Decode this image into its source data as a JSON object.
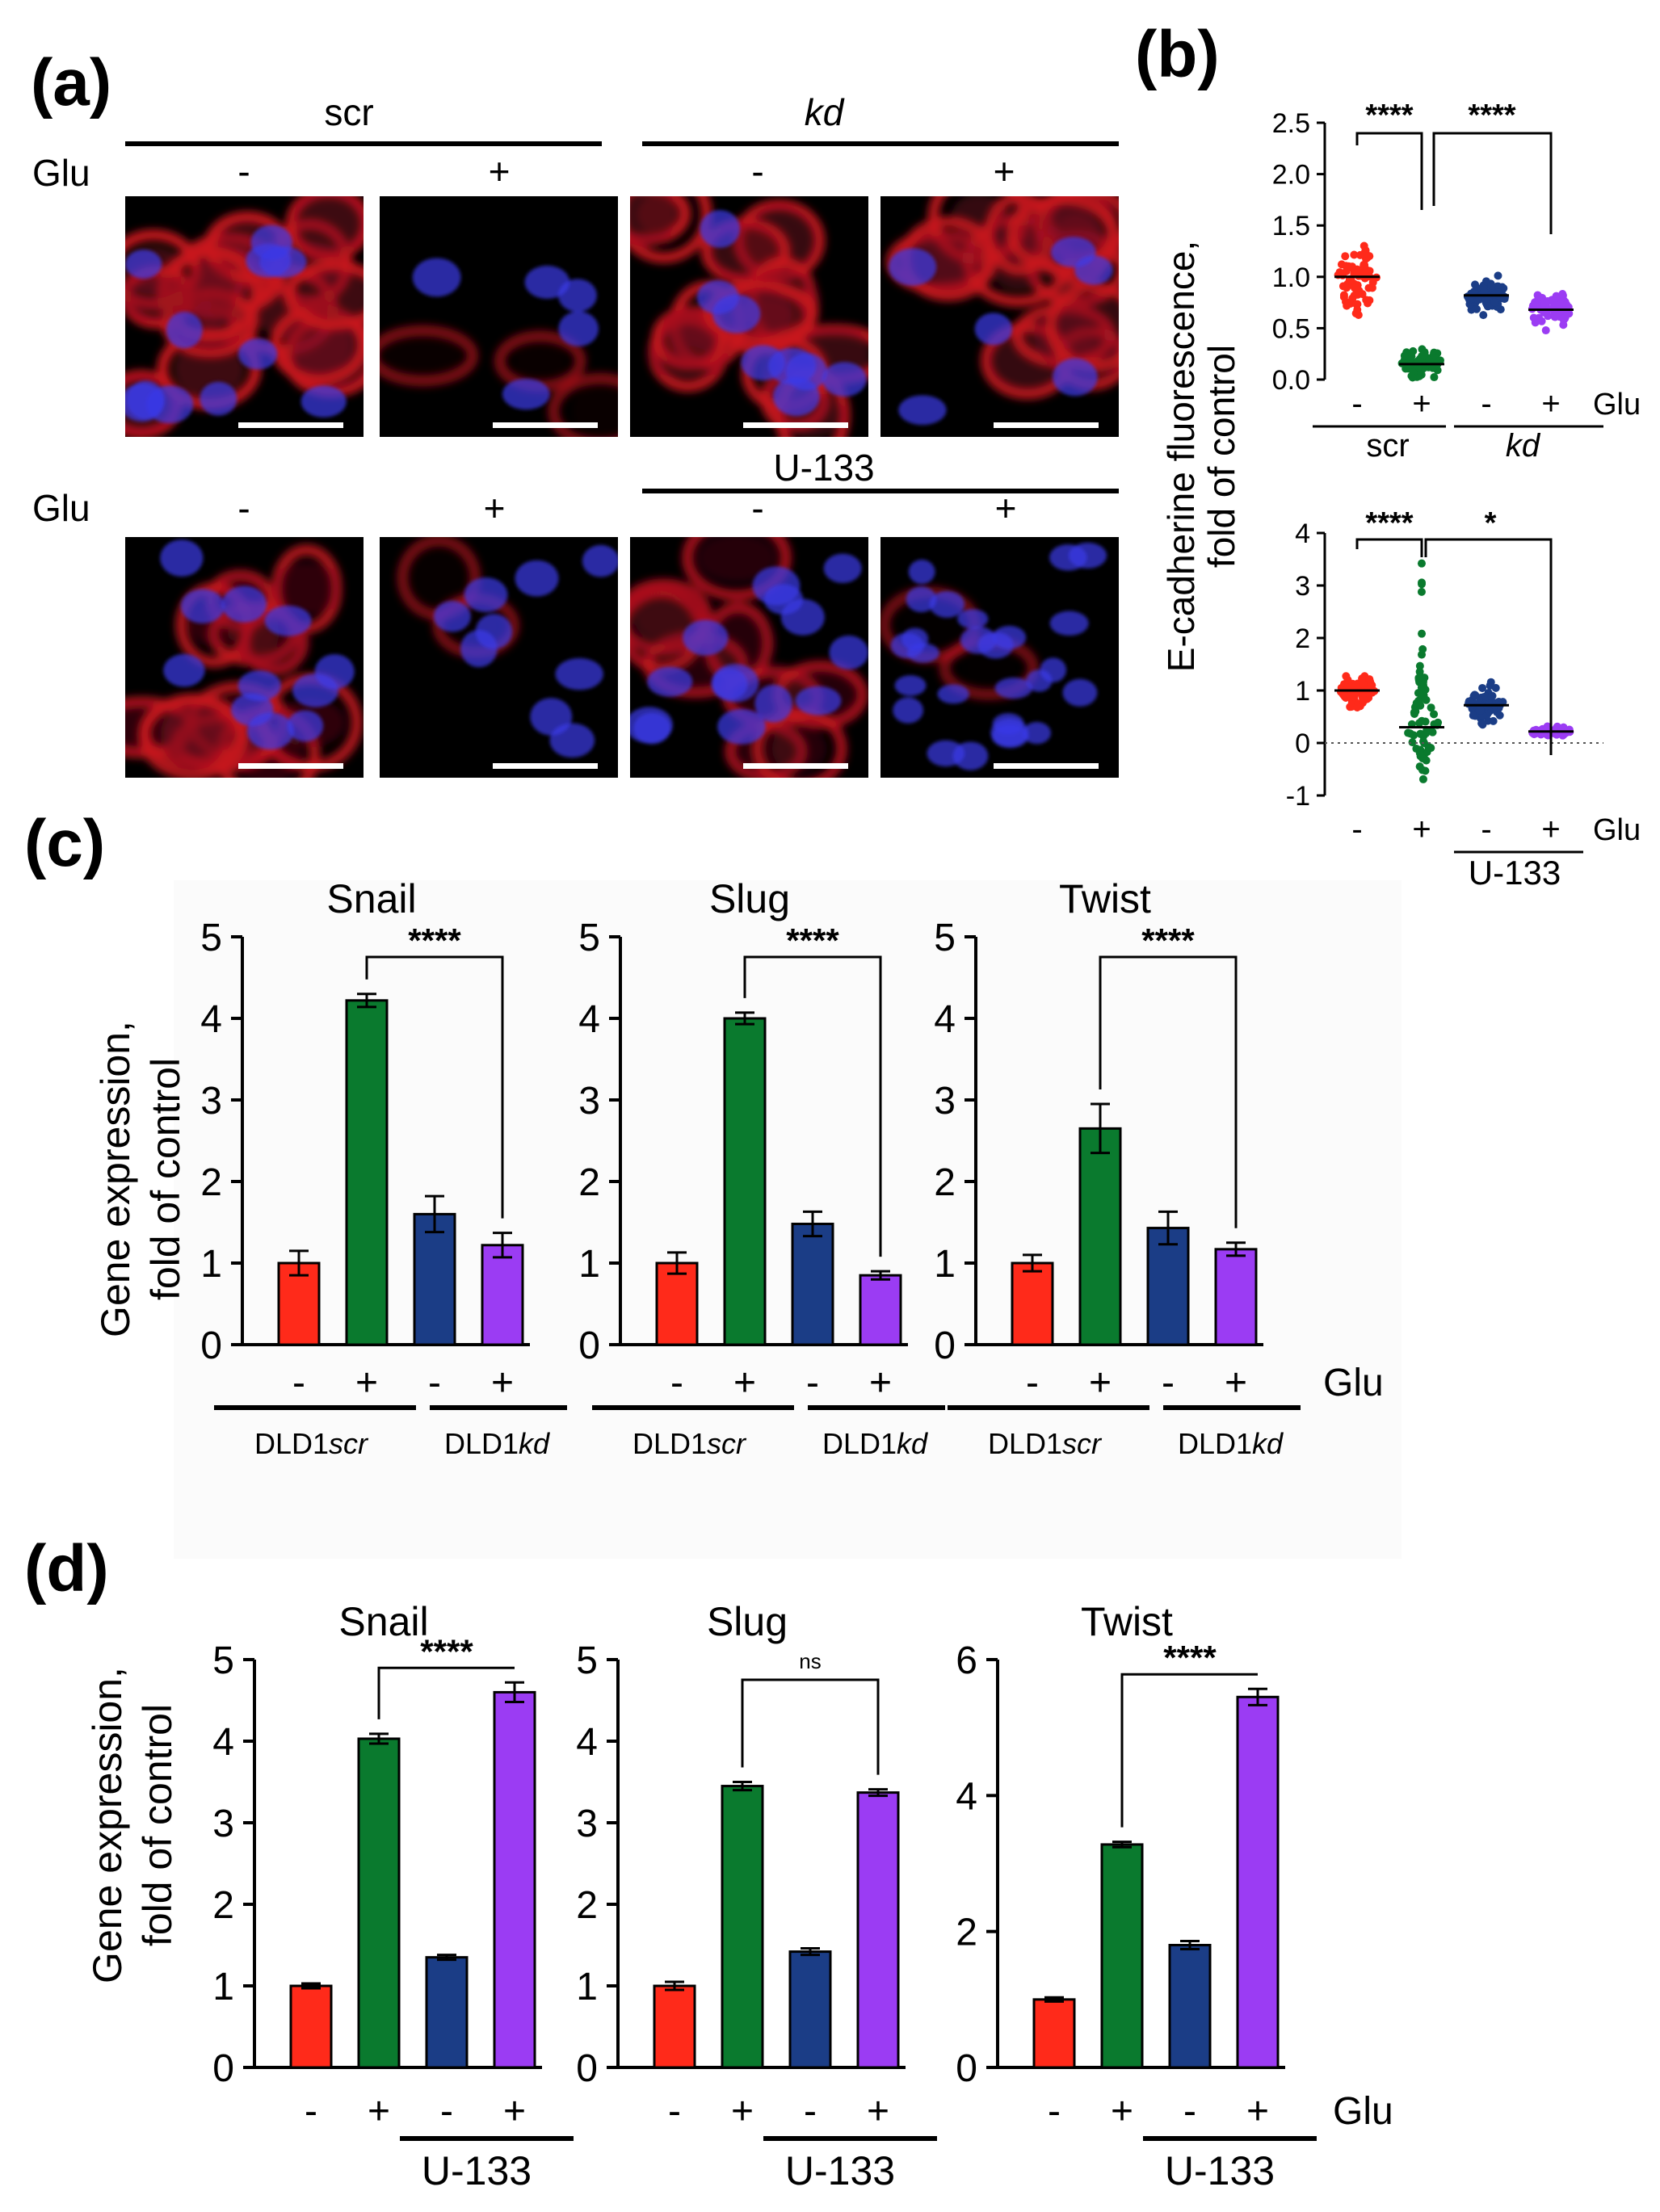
{
  "panel_labels": {
    "a": "(a)",
    "b": "(b)",
    "c": "(c)",
    "d": "(d)"
  },
  "colors": {
    "red": "#ff2a1a",
    "green": "#0a7a2e",
    "blue": "#1b3d86",
    "purple": "#9b3cf3",
    "cell_red": "#c8141e",
    "nucleus": "#3a3ae8"
  },
  "panel_a": {
    "group_scr": "scr",
    "group_kd": "kd",
    "group_u133": "U-133",
    "row_label": "Glu",
    "minus": "-",
    "plus": "+",
    "row1_signs": [
      "-",
      "+",
      "-",
      "+"
    ],
    "row2_signs": [
      "-",
      "+",
      "-",
      "+"
    ]
  },
  "panel_b": {
    "ylabel_line1": "E-cadherine fluorescence,",
    "ylabel_line2": "fold of control",
    "top": {
      "yticks": [
        "2.5",
        "2.0",
        "1.5",
        "1.0",
        "0.5",
        "0.0"
      ],
      "signs": [
        "-",
        "+",
        "-",
        "+"
      ],
      "glu": "Glu",
      "group_scr": "scr",
      "group_kd": "kd",
      "sig1": "****",
      "sig2": "****",
      "means": [
        1.0,
        0.15,
        0.82,
        0.68
      ]
    },
    "bottom": {
      "yticks": [
        "4",
        "3",
        "2",
        "1",
        "0",
        "-1"
      ],
      "signs": [
        "-",
        "+",
        "-",
        "+"
      ],
      "glu": "Glu",
      "group_u133": "U-133",
      "sig1": "****",
      "sig2": "*",
      "means": [
        1.0,
        0.3,
        0.72,
        0.22
      ]
    }
  },
  "chart_data": [
    {
      "panel": "c",
      "type": "bar",
      "title": "Snail",
      "ylabel": "Gene expression, fold of control",
      "categories": [
        "DLD1scr -",
        "DLD1scr +",
        "DLD1kd -",
        "DLD1kd +"
      ],
      "values": [
        1.0,
        4.22,
        1.6,
        1.22
      ],
      "errors": [
        0.15,
        0.08,
        0.22,
        0.15
      ],
      "ylim": [
        0,
        5
      ],
      "yticks": [
        "0",
        "1",
        "2",
        "3",
        "4",
        "5"
      ],
      "significance": "****",
      "sig_pair": [
        1,
        3
      ]
    },
    {
      "panel": "c",
      "type": "bar",
      "title": "Slug",
      "ylabel": "Gene expression, fold of control",
      "categories": [
        "DLD1scr -",
        "DLD1scr +",
        "DLD1kd -",
        "DLD1kd +"
      ],
      "values": [
        1.0,
        4.0,
        1.48,
        0.85
      ],
      "errors": [
        0.13,
        0.07,
        0.15,
        0.05
      ],
      "ylim": [
        0,
        5
      ],
      "yticks": [
        "0",
        "1",
        "2",
        "3",
        "4",
        "5"
      ],
      "significance": "****",
      "sig_pair": [
        1,
        3
      ]
    },
    {
      "panel": "c",
      "type": "bar",
      "title": "Twist",
      "ylabel": "Gene expression, fold of control",
      "categories": [
        "DLD1scr -",
        "DLD1scr +",
        "DLD1kd -",
        "DLD1kd +"
      ],
      "values": [
        1.0,
        2.65,
        1.43,
        1.17
      ],
      "errors": [
        0.1,
        0.3,
        0.2,
        0.08
      ],
      "ylim": [
        0,
        5
      ],
      "yticks": [
        "0",
        "1",
        "2",
        "3",
        "4",
        "5"
      ],
      "significance": "****",
      "sig_pair": [
        1,
        3
      ]
    },
    {
      "panel": "d",
      "type": "bar",
      "title": "Snail",
      "ylabel": "Gene expression, fold of control",
      "categories": [
        "-",
        "+",
        "U-133 -",
        "U-133 +"
      ],
      "values": [
        1.0,
        4.03,
        1.35,
        4.6
      ],
      "errors": [
        0.03,
        0.06,
        0.03,
        0.12
      ],
      "ylim": [
        0,
        5
      ],
      "yticks": [
        "0",
        "1",
        "2",
        "3",
        "4",
        "5"
      ],
      "significance": "****",
      "sig_pair": [
        1,
        3
      ]
    },
    {
      "panel": "d",
      "type": "bar",
      "title": "Slug",
      "ylabel": "Gene expression, fold of control",
      "categories": [
        "-",
        "+",
        "U-133 -",
        "U-133 +"
      ],
      "values": [
        1.0,
        3.45,
        1.42,
        3.37
      ],
      "errors": [
        0.05,
        0.05,
        0.04,
        0.04
      ],
      "ylim": [
        0,
        5
      ],
      "yticks": [
        "0",
        "1",
        "2",
        "3",
        "4",
        "5"
      ],
      "significance": "ns",
      "sig_pair": [
        1,
        3
      ]
    },
    {
      "panel": "d",
      "type": "bar",
      "title": "Twist",
      "ylabel": "Gene expression, fold of control",
      "categories": [
        "-",
        "+",
        "U-133 -",
        "U-133 +"
      ],
      "values": [
        1.0,
        3.28,
        1.8,
        5.45
      ],
      "errors": [
        0.03,
        0.04,
        0.06,
        0.12
      ],
      "ylim": [
        0,
        6
      ],
      "yticks": [
        "0",
        "2",
        "4",
        "6"
      ],
      "significance": "****",
      "sig_pair": [
        1,
        3
      ]
    }
  ],
  "panel_c_footer": {
    "minus": "-",
    "plus": "+",
    "glu": "Glu",
    "group1": "DLD1scr",
    "group2": "DLD1kd",
    "g1_prefix": "DLD1",
    "g1_suffix": "scr",
    "g2_prefix": "DLD1",
    "g2_suffix": "kd"
  },
  "panel_d_footer": {
    "minus": "-",
    "plus": "+",
    "glu": "Glu",
    "group": "U-133"
  }
}
